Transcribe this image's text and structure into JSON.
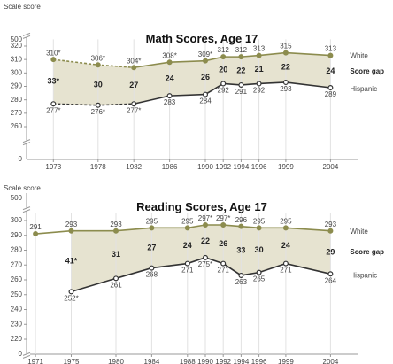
{
  "chart_data": [
    {
      "type": "line",
      "title": "Math Scores, Age 17",
      "y_label": "Scale score",
      "x": [
        1973,
        1978,
        1982,
        1986,
        1990,
        1992,
        1994,
        1996,
        1999,
        2004
      ],
      "xlim": [
        1970,
        2010
      ],
      "ylim": [
        255,
        325
      ],
      "yticks": [
        260,
        270,
        280,
        290,
        300,
        310,
        320
      ],
      "ybreak_ticks": [
        500,
        0
      ],
      "dashed_through_x": 1982,
      "gap_fill": "#e6e3d0",
      "series": [
        {
          "name": "White",
          "color": "#8c8c4e",
          "values": [
            310,
            306,
            304,
            308,
            309,
            312,
            312,
            313,
            315,
            313
          ],
          "value_labels": [
            "310*",
            "306*",
            "304*",
            "308*",
            "309*",
            "312",
            "312",
            "313",
            "315",
            "313"
          ]
        },
        {
          "name": "Score gap",
          "color": "#222222",
          "values": [
            33,
            30,
            27,
            24,
            26,
            20,
            22,
            21,
            22,
            24
          ],
          "value_labels": [
            "33*",
            "30",
            "27",
            "24",
            "26",
            "20",
            "22",
            "21",
            "22",
            "24"
          ]
        },
        {
          "name": "Hispanic",
          "color": "#333333",
          "values": [
            277,
            276,
            277,
            283,
            284,
            292,
            291,
            292,
            293,
            289
          ],
          "value_labels": [
            "277*",
            "276*",
            "277*",
            "283",
            "284",
            "292",
            "291",
            "292",
            "293",
            "289"
          ]
        }
      ]
    },
    {
      "type": "line",
      "title": "Reading Scores, Age 17",
      "y_label": "Scale score",
      "x": [
        1971,
        1975,
        1980,
        1984,
        1988,
        1990,
        1992,
        1994,
        1996,
        1999,
        2004
      ],
      "xlim": [
        1970,
        2010
      ],
      "ylim": [
        215,
        305
      ],
      "yticks": [
        220,
        230,
        240,
        250,
        260,
        270,
        280,
        290,
        300
      ],
      "ybreak_ticks": [
        500,
        0
      ],
      "gap_fill": "#e6e3d0",
      "series": [
        {
          "name": "White",
          "color": "#8c8c4e",
          "values": [
            291,
            293,
            293,
            295,
            295,
            297,
            297,
            296,
            295,
            295,
            293
          ],
          "value_labels": [
            "291",
            "293",
            "293",
            "295",
            "295",
            "297*",
            "297*",
            "296",
            "295",
            "295",
            "293"
          ]
        },
        {
          "name": "Score gap",
          "color": "#222222",
          "values": [
            null,
            41,
            31,
            27,
            24,
            22,
            26,
            33,
            30,
            24,
            29
          ],
          "value_labels": [
            null,
            "41*",
            "31",
            "27",
            "24",
            "22",
            "26",
            "33",
            "30",
            "24",
            "29"
          ]
        },
        {
          "name": "Hispanic",
          "color": "#333333",
          "values": [
            null,
            252,
            261,
            268,
            271,
            275,
            271,
            263,
            265,
            271,
            264
          ],
          "value_labels": [
            null,
            "252*",
            "261",
            "268",
            "271",
            "275*",
            "271",
            "263",
            "265",
            "271",
            "264"
          ]
        }
      ]
    }
  ]
}
